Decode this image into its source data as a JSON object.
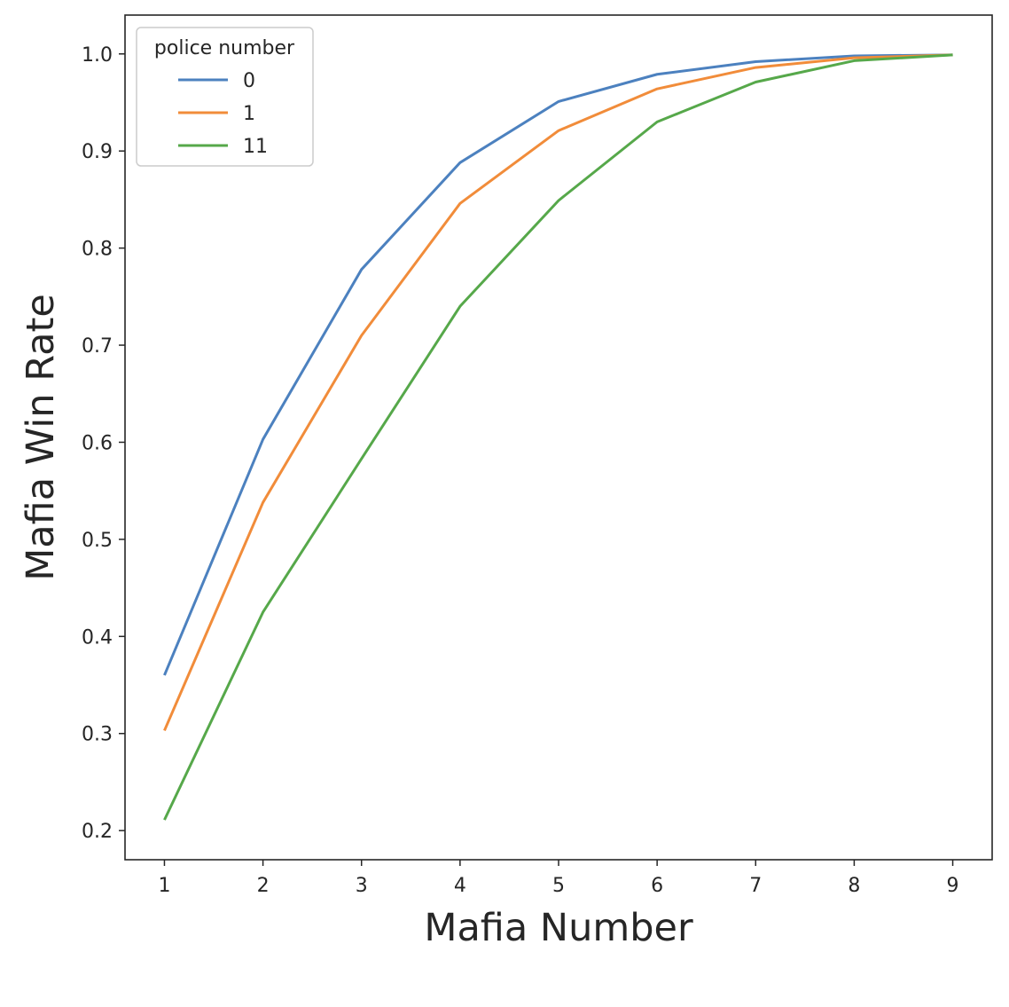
{
  "chart_data": {
    "type": "line",
    "title": "",
    "xlabel": "Mafia Number",
    "ylabel": "Mafia Win Rate",
    "x": [
      1,
      2,
      3,
      4,
      5,
      6,
      7,
      8,
      9
    ],
    "xticks": [
      "1",
      "2",
      "3",
      "4",
      "5",
      "6",
      "7",
      "8",
      "9"
    ],
    "yticks": [
      "0.2",
      "0.3",
      "0.4",
      "0.5",
      "0.6",
      "0.7",
      "0.8",
      "0.9",
      "1.0"
    ],
    "xlim": [
      0.6,
      9.4
    ],
    "ylim": [
      0.17,
      1.04
    ],
    "grid": false,
    "legend": {
      "title": "police number",
      "placement": "top-left"
    },
    "series": [
      {
        "name": "0",
        "color": "#4c81bf",
        "values": [
          0.36,
          0.603,
          0.778,
          0.888,
          0.951,
          0.979,
          0.992,
          0.998,
          0.999
        ]
      },
      {
        "name": "1",
        "color": "#f18c3a",
        "values": [
          0.303,
          0.538,
          0.71,
          0.846,
          0.921,
          0.964,
          0.986,
          0.996,
          0.999
        ]
      },
      {
        "name": "11",
        "color": "#56a84a",
        "values": [
          0.211,
          0.425,
          0.583,
          0.74,
          0.849,
          0.93,
          0.971,
          0.993,
          0.999
        ]
      }
    ]
  }
}
